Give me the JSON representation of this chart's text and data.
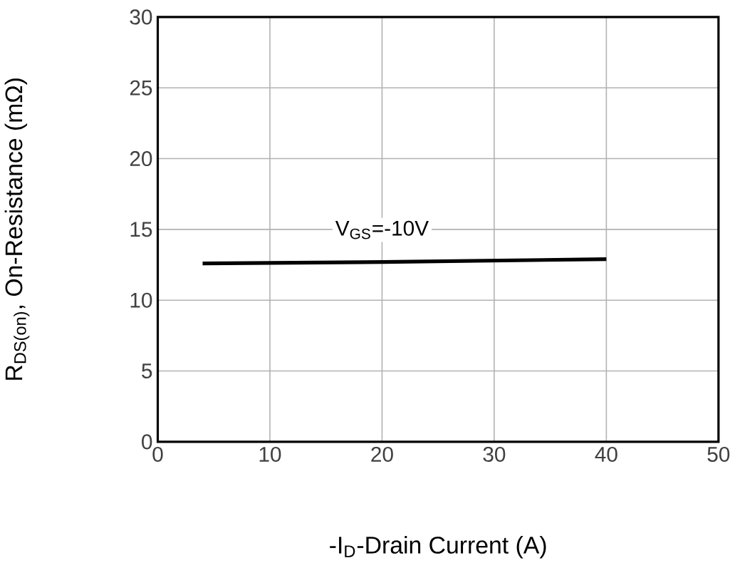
{
  "chart_data": {
    "type": "line",
    "xlabel": "-I$_{D}$-Drain Current (A)",
    "ylabel": "R$_{DS(on)}$, On-Resistance (mΩ)",
    "x": [
      4,
      20,
      40
    ],
    "series": [
      {
        "name": "V$_{GS}$=-10V",
        "color": "#000000",
        "values": [
          12.6,
          12.7,
          12.9
        ]
      }
    ],
    "xlim": [
      0,
      50
    ],
    "ylim": [
      0,
      30
    ],
    "xticks": [
      0,
      10,
      20,
      30,
      40,
      50
    ],
    "yticks": [
      0,
      5,
      10,
      15,
      20,
      25,
      30
    ],
    "grid": true,
    "marker": "none",
    "line_style": "solid"
  }
}
